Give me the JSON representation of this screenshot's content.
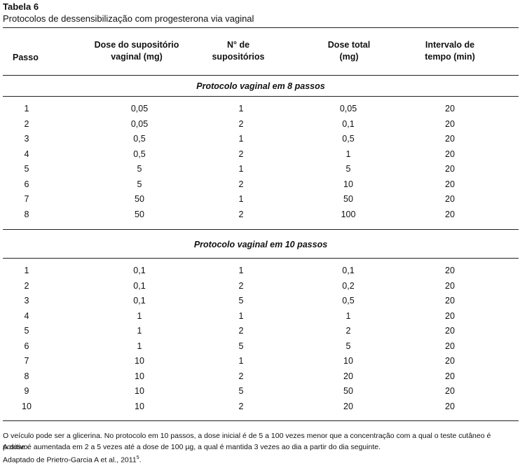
{
  "title": "Tabela 6",
  "subtitle": "Protocolos de dessensibilização com progesterona via vaginal",
  "headers": {
    "passo": "Passo",
    "dose_sup_1": "Dose do supositório",
    "dose_sup_2": "vaginal (mg)",
    "n_sup_1": "N° de",
    "n_sup_2": "supositórios",
    "dose_total_1": "Dose total",
    "dose_total_2": "(mg)",
    "intervalo_1": "Intervalo de",
    "intervalo_2": "tempo (min)"
  },
  "section1_title": "Protocolo vaginal em 8 passos",
  "section1_rows": [
    [
      "1",
      "0,05",
      "1",
      "0,05",
      "20"
    ],
    [
      "2",
      "0,05",
      "2",
      "0,1",
      "20"
    ],
    [
      "3",
      "0,5",
      "1",
      "0,5",
      "20"
    ],
    [
      "4",
      "0,5",
      "2",
      "1",
      "20"
    ],
    [
      "5",
      "5",
      "1",
      "5",
      "20"
    ],
    [
      "6",
      "5",
      "2",
      "10",
      "20"
    ],
    [
      "7",
      "50",
      "1",
      "50",
      "20"
    ],
    [
      "8",
      "50",
      "2",
      "100",
      "20"
    ]
  ],
  "section2_title": "Protocolo vaginal em 10 passos",
  "section2_rows": [
    [
      "1",
      "0,1",
      "1",
      "0,1",
      "20"
    ],
    [
      "2",
      "0,1",
      "2",
      "0,2",
      "20"
    ],
    [
      "3",
      "0,1",
      "5",
      "0,5",
      "20"
    ],
    [
      "4",
      "1",
      "1",
      "1",
      "20"
    ],
    [
      "5",
      "1",
      "2",
      "2",
      "20"
    ],
    [
      "6",
      "1",
      "5",
      "5",
      "20"
    ],
    [
      "7",
      "10",
      "1",
      "10",
      "20"
    ],
    [
      "8",
      "10",
      "2",
      "20",
      "20"
    ],
    [
      "9",
      "10",
      "5",
      "50",
      "20"
    ],
    [
      "10",
      "10",
      "2",
      "20",
      "20"
    ]
  ],
  "notes": {
    "line1": "O veículo pode ser a glicerina. No protocolo em 10 passos, a dose inicial é de 5 a 100 vezes menor que a concentração com a qual o teste cutâneo é positivo.",
    "line2": "A dose é aumentada em 2 a 5 vezes até a dose de 100 µg, a qual é mantida 3 vezes ao dia a partir do dia seguinte.",
    "line3": "Adaptado de Prietro-Garcia A et al., 2011",
    "line3_ref": "5",
    "line3_end": "."
  }
}
